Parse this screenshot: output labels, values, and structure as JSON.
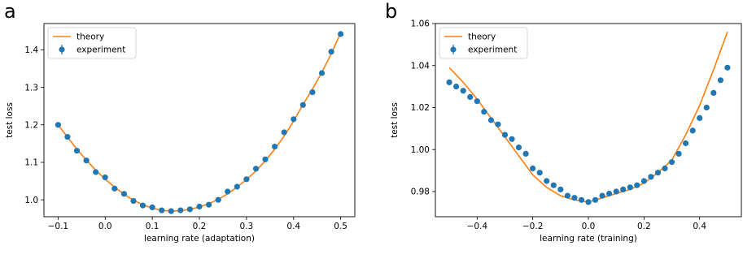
{
  "chart_data": [
    {
      "type": "scatter",
      "panel_label": "a",
      "title": "",
      "xlabel": "learning rate (adaptation)",
      "ylabel": "test loss",
      "xlim": [
        -0.13,
        0.53
      ],
      "ylim": [
        0.955,
        1.47
      ],
      "xticks": [
        -0.1,
        0.0,
        0.1,
        0.2,
        0.3,
        0.4,
        0.5
      ],
      "xtick_labels": [
        "−0.1",
        "0.0",
        "0.1",
        "0.2",
        "0.3",
        "0.4",
        "0.5"
      ],
      "yticks": [
        1.0,
        1.1,
        1.2,
        1.3,
        1.4
      ],
      "ytick_labels": [
        "1.0",
        "1.1",
        "1.2",
        "1.3",
        "1.4"
      ],
      "legend_position": "top-left",
      "series": [
        {
          "name": "theory",
          "kind": "line",
          "color": "#ff7f0e",
          "x": [
            -0.1,
            -0.08,
            -0.06,
            -0.04,
            -0.02,
            0.0,
            0.02,
            0.04,
            0.06,
            0.08,
            0.1,
            0.12,
            0.14,
            0.16,
            0.18,
            0.2,
            0.22,
            0.24,
            0.26,
            0.28,
            0.3,
            0.32,
            0.34,
            0.36,
            0.38,
            0.4,
            0.42,
            0.44,
            0.46,
            0.48,
            0.5
          ],
          "y": [
            1.2,
            1.167,
            1.135,
            1.106,
            1.079,
            1.055,
            1.034,
            1.015,
            0.999,
            0.987,
            0.978,
            0.972,
            0.97,
            0.971,
            0.975,
            0.981,
            0.99,
            1.001,
            1.016,
            1.034,
            1.054,
            1.077,
            1.104,
            1.135,
            1.17,
            1.21,
            1.254,
            1.295,
            1.34,
            1.39,
            1.445
          ]
        },
        {
          "name": "experiment",
          "kind": "points",
          "color": "#1f77b4",
          "x": [
            -0.1,
            -0.08,
            -0.06,
            -0.04,
            -0.02,
            0.0,
            0.02,
            0.04,
            0.06,
            0.08,
            0.1,
            0.12,
            0.14,
            0.16,
            0.18,
            0.2,
            0.22,
            0.24,
            0.26,
            0.28,
            0.3,
            0.32,
            0.34,
            0.36,
            0.38,
            0.4,
            0.42,
            0.44,
            0.46,
            0.48,
            0.5
          ],
          "y": [
            1.2,
            1.168,
            1.131,
            1.105,
            1.074,
            1.06,
            1.03,
            1.016,
            0.997,
            0.985,
            0.98,
            0.972,
            0.97,
            0.972,
            0.975,
            0.982,
            0.987,
            1.0,
            1.022,
            1.035,
            1.055,
            1.083,
            1.108,
            1.142,
            1.18,
            1.215,
            1.253,
            1.287,
            1.338,
            1.395,
            1.442
          ]
        }
      ]
    },
    {
      "type": "scatter",
      "panel_label": "b",
      "title": "",
      "xlabel": "learning rate (training)",
      "ylabel": "test loss",
      "xlim": [
        -0.55,
        0.55
      ],
      "ylim": [
        0.968,
        1.06
      ],
      "xticks": [
        -0.4,
        -0.2,
        0.0,
        0.2,
        0.4
      ],
      "xtick_labels": [
        "−0.4",
        "−0.2",
        "0.0",
        "0.2",
        "0.4"
      ],
      "yticks": [
        0.98,
        1.0,
        1.02,
        1.04,
        1.06
      ],
      "ytick_labels": [
        "0.98",
        "1.00",
        "1.02",
        "1.04",
        "1.06"
      ],
      "legend_position": "top-left",
      "series": [
        {
          "name": "theory",
          "kind": "line",
          "color": "#ff7f0e",
          "x": [
            -0.5,
            -0.45,
            -0.4,
            -0.35,
            -0.3,
            -0.25,
            -0.2,
            -0.15,
            -0.1,
            -0.05,
            0.0,
            0.05,
            0.1,
            0.15,
            0.2,
            0.25,
            0.3,
            0.35,
            0.4,
            0.45,
            0.5
          ],
          "y": [
            1.039,
            1.032,
            1.024,
            1.015,
            1.006,
            0.997,
            0.988,
            0.982,
            0.978,
            0.976,
            0.975,
            0.977,
            0.979,
            0.981,
            0.984,
            0.989,
            0.995,
            1.007,
            1.021,
            1.038,
            1.056
          ]
        },
        {
          "name": "experiment",
          "kind": "points",
          "color": "#1f77b4",
          "x": [
            -0.5,
            -0.475,
            -0.45,
            -0.425,
            -0.4,
            -0.375,
            -0.35,
            -0.325,
            -0.3,
            -0.275,
            -0.25,
            -0.225,
            -0.2,
            -0.175,
            -0.15,
            -0.125,
            -0.1,
            -0.075,
            -0.05,
            -0.025,
            0.0,
            0.025,
            0.05,
            0.075,
            0.1,
            0.125,
            0.15,
            0.175,
            0.2,
            0.225,
            0.25,
            0.275,
            0.3,
            0.325,
            0.35,
            0.375,
            0.4,
            0.425,
            0.45,
            0.475,
            0.5
          ],
          "y": [
            1.032,
            1.03,
            1.028,
            1.025,
            1.023,
            1.018,
            1.014,
            1.012,
            1.007,
            1.005,
            1.001,
            0.998,
            0.991,
            0.989,
            0.985,
            0.983,
            0.981,
            0.978,
            0.977,
            0.976,
            0.975,
            0.976,
            0.978,
            0.979,
            0.98,
            0.981,
            0.982,
            0.983,
            0.985,
            0.987,
            0.989,
            0.991,
            0.994,
            0.998,
            1.003,
            1.009,
            1.015,
            1.02,
            1.027,
            1.033,
            1.039
          ]
        }
      ]
    }
  ]
}
